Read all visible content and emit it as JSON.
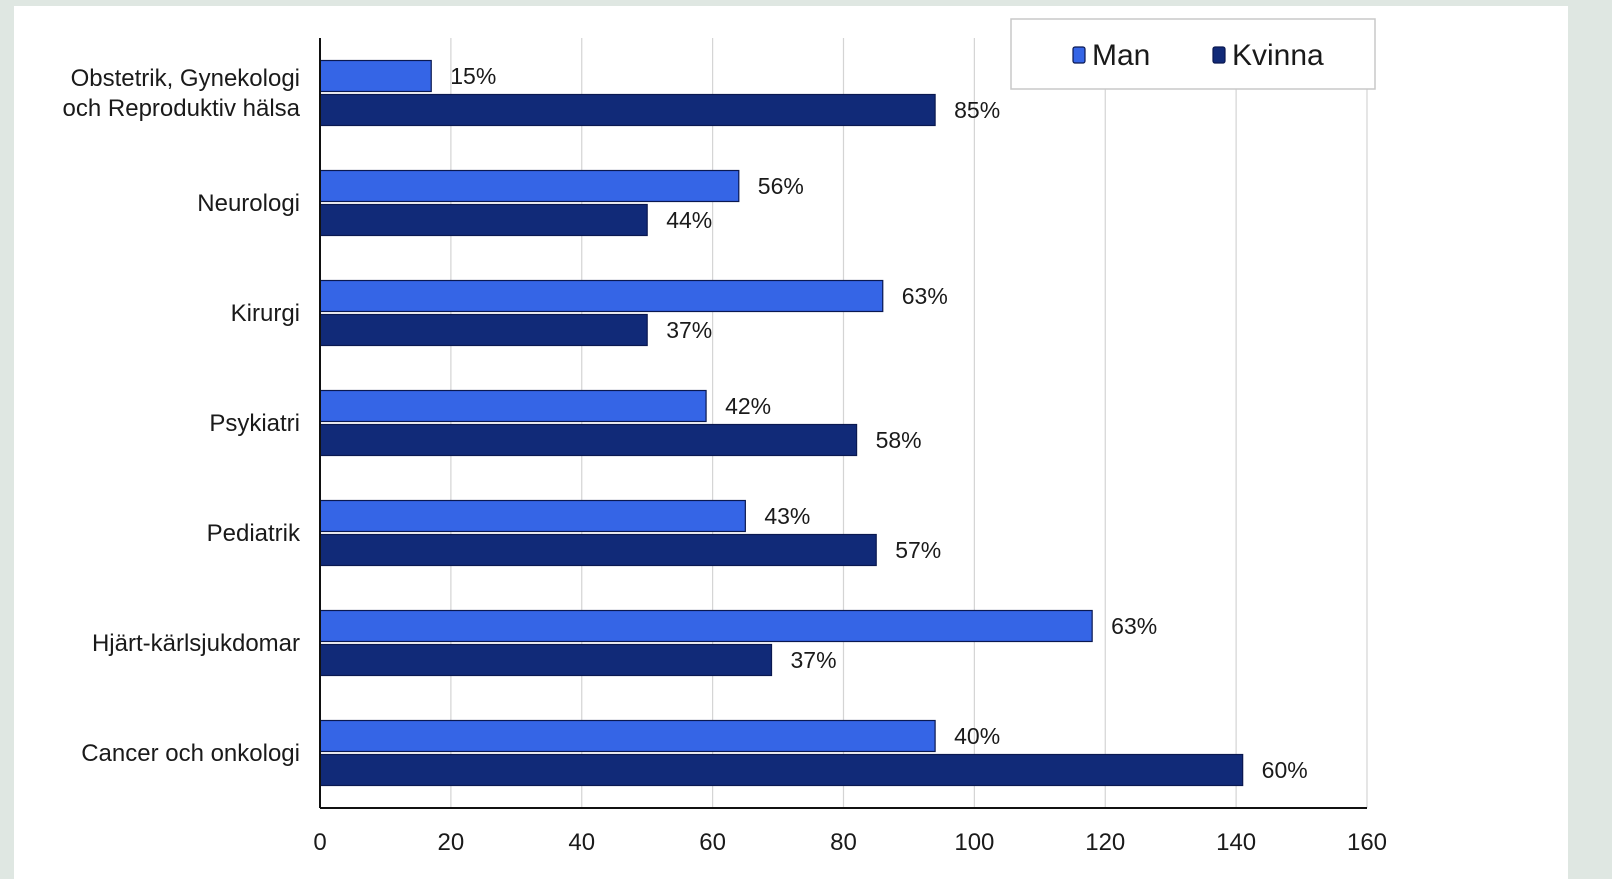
{
  "chart_data": {
    "type": "bar",
    "orientation": "horizontal",
    "title": "",
    "xlabel": "",
    "ylabel": "",
    "xlim": [
      0,
      160
    ],
    "x_ticks": [
      "0",
      "20",
      "40",
      "60",
      "80",
      "100",
      "120",
      "140",
      "160"
    ],
    "grid": "vertical",
    "legend_position": "top-right",
    "categories": [
      [
        "Obstetrik, Gynekologi",
        "och Reproduktiv hälsa"
      ],
      [
        "Neurologi"
      ],
      [
        "Kirurgi"
      ],
      [
        "Psykiatri"
      ],
      [
        "Pediatrik"
      ],
      [
        "Hjärt-kärlsjukdomar"
      ],
      [
        "Cancer och onkologi"
      ]
    ],
    "series": [
      {
        "name": "Man",
        "color": "#3565e6",
        "values": [
          17,
          64,
          86,
          59,
          65,
          118,
          94
        ],
        "labels": [
          "15%",
          "56%",
          "63%",
          "42%",
          "43%",
          "63%",
          "40%"
        ]
      },
      {
        "name": "Kvinna",
        "color": "#112a78",
        "values": [
          94,
          50,
          50,
          82,
          85,
          69,
          141
        ],
        "labels": [
          "85%",
          "44%",
          "37%",
          "58%",
          "57%",
          "37%",
          "60%"
        ]
      }
    ]
  }
}
